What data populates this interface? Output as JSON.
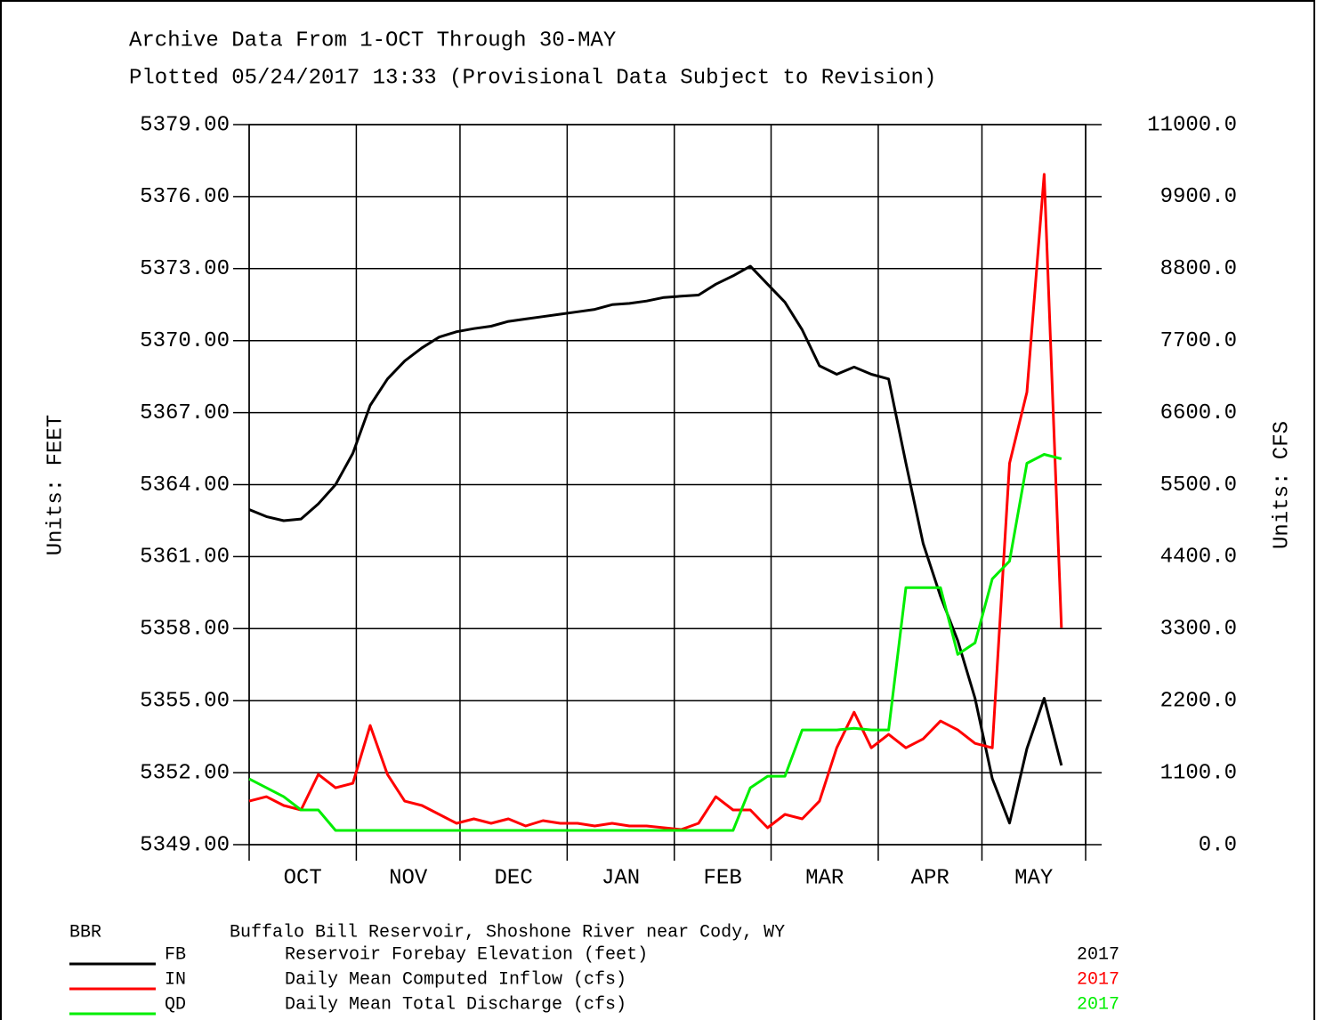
{
  "chart_data": {
    "type": "line",
    "title": "Archive Data From  1-OCT Through 30-MAY",
    "subtitle": "Plotted 05/24/2017  13:33 (Provisional Data Subject to Revision)",
    "y_label": "Units: FEET",
    "y2_label": "Units: CFS",
    "station": "BBR",
    "legend_title": "Buffalo Bill Reservoir, Shoshone River near Cody, WY",
    "categories": [
      "OCT",
      "NOV",
      "DEC",
      "JAN",
      "FEB",
      "MAR",
      "APR",
      "MAY"
    ],
    "x": [
      0,
      5,
      10,
      15,
      20,
      25,
      30,
      35,
      40,
      45,
      50,
      55,
      60,
      65,
      70,
      75,
      80,
      85,
      90,
      95,
      100,
      105,
      110,
      115,
      120,
      125,
      130,
      135,
      140,
      145,
      150,
      155,
      160,
      165,
      170,
      175,
      180,
      185,
      190,
      195,
      200,
      205,
      210,
      215,
      220,
      225,
      230,
      235
    ],
    "xlim": [
      0,
      242
    ],
    "xticks": [
      0,
      31,
      61,
      92,
      123,
      151,
      182,
      212,
      242
    ],
    "ylim": [
      5349,
      5379
    ],
    "yticks": [
      {
        "value": 5349,
        "label": "5349.00"
      },
      {
        "value": 5352,
        "label": "5352.00"
      },
      {
        "value": 5355,
        "label": "5355.00"
      },
      {
        "value": 5358,
        "label": "5358.00"
      },
      {
        "value": 5361,
        "label": "5361.00"
      },
      {
        "value": 5364,
        "label": "5364.00"
      },
      {
        "value": 5367,
        "label": "5367.00"
      },
      {
        "value": 5370,
        "label": "5370.00"
      },
      {
        "value": 5373,
        "label": "5373.00"
      },
      {
        "value": 5376,
        "label": "5376.00"
      },
      {
        "value": 5379,
        "label": "5379.00"
      }
    ],
    "y2lim": [
      0,
      11000
    ],
    "y2ticks": [
      {
        "value": 0,
        "label": "0.0"
      },
      {
        "value": 1100,
        "label": "1100.0"
      },
      {
        "value": 2200,
        "label": "2200.0"
      },
      {
        "value": 3300,
        "label": "3300.0"
      },
      {
        "value": 4400,
        "label": "4400.0"
      },
      {
        "value": 5500,
        "label": "5500.0"
      },
      {
        "value": 6600,
        "label": "6600.0"
      },
      {
        "value": 7700,
        "label": "7700.0"
      },
      {
        "value": 8800,
        "label": "8800.0"
      },
      {
        "value": 9900,
        "label": "9900.0"
      },
      {
        "value": 11000,
        "label": "11000.0"
      }
    ],
    "grid": true,
    "series": [
      {
        "code": "FB",
        "name": "Reservoir Forebay Elevation (feet)",
        "year": "2017",
        "color": "#000000",
        "axis": "y",
        "values": [
          5362.96,
          5362.67,
          5362.5,
          5362.57,
          5363.2,
          5364.0,
          5365.3,
          5367.3,
          5368.4,
          5369.15,
          5369.7,
          5370.15,
          5370.37,
          5370.5,
          5370.6,
          5370.8,
          5370.9,
          5371.0,
          5371.1,
          5371.2,
          5371.3,
          5371.5,
          5371.55,
          5371.65,
          5371.8,
          5371.85,
          5371.9,
          5372.35,
          5372.7,
          5373.1,
          5372.35,
          5371.6,
          5370.45,
          5368.95,
          5368.6,
          5368.9,
          5368.6,
          5368.4,
          5364.9,
          5361.55,
          5359.35,
          5357.5,
          5355.1,
          5351.75,
          5349.9,
          5353.0,
          5355.1,
          5352.3
        ]
      },
      {
        "code": "IN",
        "name": "Daily Mean Computed Inflow (cfs)",
        "year": "2017",
        "color": "#ff0000",
        "axis": "y2",
        "values": [
          665,
          733,
          598,
          530,
          1073,
          869,
          937,
          1820,
          1073,
          665,
          598,
          462,
          326,
          394,
          326,
          394,
          285,
          367,
          326,
          326,
          285,
          326,
          285,
          285,
          258,
          231,
          326,
          733,
          530,
          530,
          258,
          462,
          394,
          665,
          1480,
          2023,
          1480,
          1684,
          1480,
          1616,
          1888,
          1752,
          1548,
          1480,
          5826,
          6912,
          10240,
          3314
        ]
      },
      {
        "code": "QD",
        "name": "Daily Mean Total Discharge (cfs)",
        "year": "2017",
        "color": "#00ee00",
        "axis": "y2",
        "values": [
          1005,
          869,
          733,
          530,
          530,
          217,
          217,
          217,
          217,
          217,
          217,
          217,
          217,
          217,
          217,
          217,
          217,
          217,
          217,
          217,
          217,
          217,
          217,
          217,
          217,
          217,
          217,
          217,
          217,
          869,
          1046,
          1046,
          1752,
          1752,
          1752,
          1779,
          1752,
          1752,
          3925,
          3925,
          3925,
          2906,
          3083,
          4060,
          4332,
          5826,
          5962,
          5894
        ]
      }
    ]
  }
}
